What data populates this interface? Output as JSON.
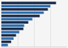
{
  "chart_data": {
    "type": "bar",
    "orientation": "horizontal",
    "categories": [
      null,
      null,
      null,
      null,
      null,
      null,
      null,
      null,
      null,
      null,
      null,
      null,
      null,
      null
    ],
    "values": [
      67,
      60,
      57,
      52,
      47,
      38,
      33,
      28,
      27,
      22,
      18,
      15,
      12,
      8
    ],
    "colors": [
      "#1c2b4a",
      "#2c6fad",
      "#1c2b4a",
      "#2c6fad",
      "#1c2b4a",
      "#2c6fad",
      "#1c2b4a",
      "#2c6fad",
      "#1c2b4a",
      "#2c6fad",
      "#1c2b4a",
      "#2c6fad",
      "#1c2b4a",
      "#2c6fad"
    ],
    "xlim": [
      0,
      80
    ],
    "xticks": [
      20,
      40,
      60,
      80
    ],
    "grid": true,
    "tick_labels": false
  }
}
